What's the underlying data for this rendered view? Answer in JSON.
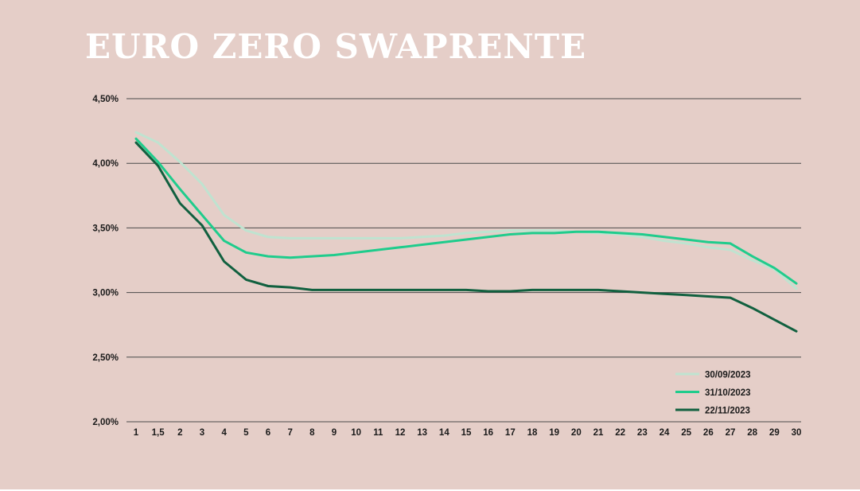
{
  "title": "EURO ZERO SWAPRENTE",
  "chart_data": {
    "type": "line",
    "title": "EURO ZERO SWAPRENTE",
    "xlabel": "",
    "ylabel": "",
    "categories": [
      "1",
      "1,5",
      "2",
      "3",
      "4",
      "5",
      "6",
      "7",
      "8",
      "9",
      "10",
      "11",
      "12",
      "13",
      "14",
      "15",
      "16",
      "17",
      "18",
      "19",
      "20",
      "21",
      "22",
      "23",
      "24",
      "25",
      "26",
      "27",
      "28",
      "29",
      "30"
    ],
    "y_ticks": [
      "2,00%",
      "2,50%",
      "3,00%",
      "3,50%",
      "4,00%",
      "4,50%"
    ],
    "ylim": [
      2.0,
      4.5
    ],
    "grid": "horizontal",
    "legend_position": "bottom-right",
    "series": [
      {
        "name": "30/09/2023",
        "color": "#bfe3d0",
        "values": [
          4.24,
          4.16,
          4.01,
          3.84,
          3.6,
          3.48,
          3.43,
          3.42,
          3.42,
          3.42,
          3.42,
          3.42,
          3.42,
          3.43,
          3.44,
          3.46,
          3.47,
          3.48,
          3.48,
          3.48,
          3.47,
          3.46,
          3.45,
          3.43,
          3.4,
          3.38,
          3.35,
          3.33,
          3.25,
          3.18,
          3.03
        ]
      },
      {
        "name": "31/10/2023",
        "color": "#1fcc8c",
        "values": [
          4.19,
          4.01,
          3.8,
          3.6,
          3.4,
          3.31,
          3.28,
          3.27,
          3.28,
          3.29,
          3.31,
          3.33,
          3.35,
          3.37,
          3.39,
          3.41,
          3.43,
          3.45,
          3.46,
          3.46,
          3.47,
          3.47,
          3.46,
          3.45,
          3.43,
          3.41,
          3.39,
          3.38,
          3.28,
          3.19,
          3.07
        ]
      },
      {
        "name": "22/11/2023",
        "color": "#11603f",
        "values": [
          4.16,
          3.98,
          3.69,
          3.52,
          3.24,
          3.1,
          3.05,
          3.04,
          3.02,
          3.02,
          3.02,
          3.02,
          3.02,
          3.02,
          3.02,
          3.02,
          3.01,
          3.01,
          3.02,
          3.02,
          3.02,
          3.02,
          3.01,
          3.0,
          2.99,
          2.98,
          2.97,
          2.96,
          2.88,
          2.79,
          2.7
        ]
      }
    ]
  }
}
